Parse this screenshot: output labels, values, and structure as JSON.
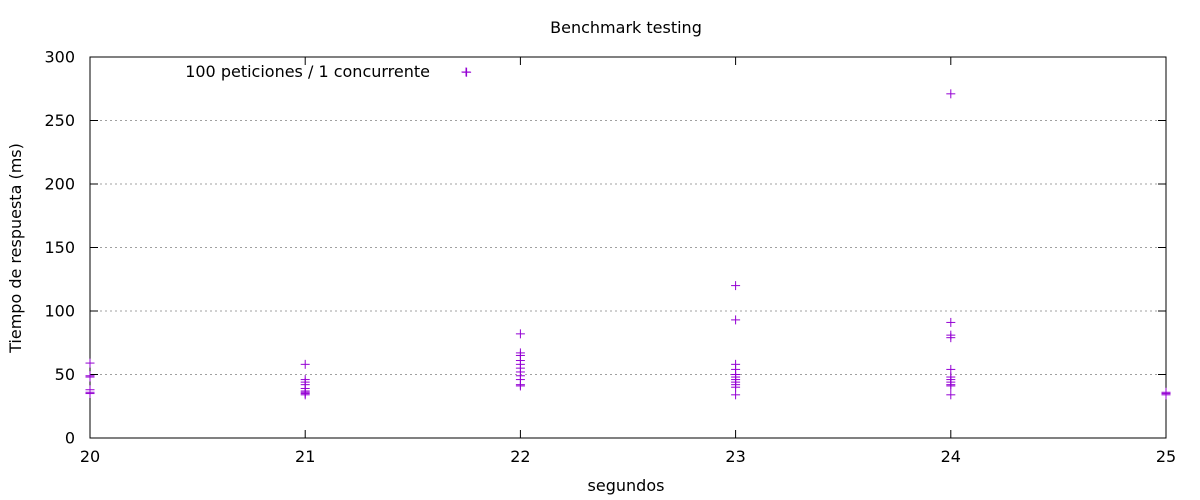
{
  "chart_data": {
    "type": "scatter",
    "title": "Benchmark testing",
    "xlabel": "segundos",
    "ylabel": "Tiempo de respuesta (ms)",
    "xlim": [
      20,
      25
    ],
    "ylim": [
      0,
      300
    ],
    "xticks": [
      20,
      21,
      22,
      23,
      24,
      25
    ],
    "yticks": [
      0,
      50,
      100,
      150,
      200,
      250,
      300
    ],
    "grid": {
      "horizontal": true,
      "vertical": false,
      "style": "dotted"
    },
    "legend_position": "top-left",
    "series": [
      {
        "name": "100 peticiones / 1 concurrente",
        "color": "#9400d3",
        "marker": "plus",
        "points": [
          [
            20,
            59
          ],
          [
            20,
            49
          ],
          [
            20,
            48
          ],
          [
            20,
            38
          ],
          [
            20,
            36
          ],
          [
            20,
            35
          ],
          [
            21,
            58
          ],
          [
            21,
            46
          ],
          [
            21,
            44
          ],
          [
            21,
            42
          ],
          [
            21,
            39
          ],
          [
            21,
            37
          ],
          [
            21,
            36
          ],
          [
            21,
            35
          ],
          [
            21,
            34
          ],
          [
            22,
            82
          ],
          [
            22,
            67
          ],
          [
            22,
            65
          ],
          [
            22,
            61
          ],
          [
            22,
            58
          ],
          [
            22,
            55
          ],
          [
            22,
            52
          ],
          [
            22,
            49
          ],
          [
            22,
            46
          ],
          [
            22,
            42
          ],
          [
            22,
            41
          ],
          [
            23,
            120
          ],
          [
            23,
            93
          ],
          [
            23,
            58
          ],
          [
            23,
            54
          ],
          [
            23,
            50
          ],
          [
            23,
            48
          ],
          [
            23,
            46
          ],
          [
            23,
            44
          ],
          [
            23,
            42
          ],
          [
            23,
            40
          ],
          [
            23,
            34
          ],
          [
            24,
            271
          ],
          [
            24,
            91
          ],
          [
            24,
            81
          ],
          [
            24,
            79
          ],
          [
            24,
            54
          ],
          [
            24,
            48
          ],
          [
            24,
            46
          ],
          [
            24,
            44
          ],
          [
            24,
            42
          ],
          [
            24,
            41
          ],
          [
            24,
            34
          ],
          [
            25,
            36
          ],
          [
            25,
            35
          ],
          [
            25,
            34
          ],
          [
            21.75,
            288
          ]
        ]
      }
    ]
  }
}
